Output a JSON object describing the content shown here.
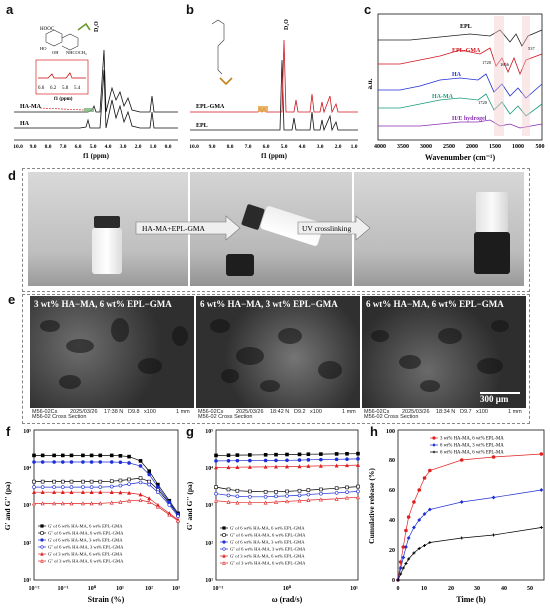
{
  "panels": {
    "a": {
      "label": "a",
      "x_axis_label": "f1 (ppm)",
      "x_ticks": [
        "10.0",
        "9.0",
        "8.0",
        "7.0",
        "6.0",
        "5.0",
        "4.0",
        "3.0",
        "2.0",
        "1.0",
        "0.0"
      ],
      "inset_ticks": [
        "6.6",
        "6.2",
        "5.8",
        "5.4"
      ],
      "inset_axis_label": "f1 (ppm)",
      "series_labels": [
        "HA-MA",
        "HA"
      ],
      "solvent_label": "D₂O",
      "structure_labels": [
        "HOOC",
        "NHCOCH₃",
        "OH",
        "HO"
      ]
    },
    "b": {
      "label": "b",
      "x_axis_label": "f1 (ppm)",
      "x_ticks": [
        "10.0",
        "9.0",
        "8.0",
        "7.0",
        "6.0",
        "5.0",
        "4.0",
        "3.0",
        "2.0",
        "1.0"
      ],
      "series_labels": [
        "EPL-GMA",
        "EPL"
      ],
      "solvent_label": "D₂O"
    },
    "c": {
      "label": "c",
      "x_axis_label": "Wavenumber (cm⁻¹)",
      "y_axis_label": "a.u.",
      "x_ticks": [
        "4000",
        "3500",
        "3000",
        "2500",
        "2000",
        "1500",
        "1000",
        "500"
      ],
      "series_labels": [
        "EPL",
        "EPL-GMA",
        "HA",
        "HA-MA",
        "H/E hydrogel"
      ],
      "peak_labels": [
        "1720",
        "1656",
        "537",
        "1720"
      ]
    },
    "d": {
      "label": "d",
      "step1_label": "HA-MA+EPL-GMA",
      "step2_label": "UV crosslinking"
    },
    "e": {
      "label": "e",
      "images": [
        {
          "caption": "3 wt% HA−MA, 6 wt% EPL−GMA",
          "meta": [
            "M56-02Cs",
            "2025/03/26",
            "17:38 N",
            "D9.8",
            "x100",
            "1 mm"
          ],
          "section": "M56-02 Cross Section"
        },
        {
          "caption": "6 wt% HA−MA, 3 wt% EPL−GMA",
          "meta": [
            "M56-02Cs",
            "2025/03/26",
            "18:42 N",
            "D9.2",
            "x100",
            "1 mm"
          ],
          "section": "M56-02 Cross Section"
        },
        {
          "caption": "6 wt% HA−MA, 6 wt% EPL−GMA",
          "meta": [
            "M56-02Cs",
            "2025/03/26",
            "18:34 N",
            "D9.7",
            "x100",
            "1 mm"
          ],
          "section": "M56-02 Cross Section"
        }
      ],
      "scale_bar": "300 μm"
    },
    "f": {
      "label": "f",
      "x_axis_label": "Strain (%)",
      "y_axis_label": "G' and G'' (pa)",
      "x_ticks": [
        "10⁻²",
        "10⁻¹",
        "10⁰",
        "10¹",
        "10²",
        "10³"
      ],
      "y_ticks": [
        "10¹",
        "10²",
        "10³",
        "10⁴",
        "10⁵"
      ],
      "legend": [
        "G' of 6 wt% HA-MA, 6 wt% EPL-GMA",
        "G'' of 6 wt% HA-MA, 6 wt% EPL-GMA",
        "G' of 6 wt% HA-MA, 3 wt% EPL-GMA",
        "G'' of 6 wt% HA-MA, 3 wt% EPL-GMA",
        "G' of 3 wt% HA-MA, 6 wt% EPL-GMA",
        "G'' of 3 wt% HA-MA, 6 wt% EPL-GMA"
      ]
    },
    "g": {
      "label": "g",
      "x_axis_label": "ω (rad/s)",
      "y_axis_label": "G' and G'' (pa)",
      "x_ticks": [
        "10⁻¹",
        "10⁰",
        "10¹"
      ],
      "y_ticks": [
        "10¹",
        "10²",
        "10³",
        "10⁴",
        "10⁵"
      ],
      "legend": [
        "G' of 6 wt% HA-MA, 6 wt% EPL-GMA",
        "G'' of 6 wt% HA-MA, 6 wt% EPL-GMA",
        "G' of 6 wt% HA-MA, 3 wt% EPL-GMA",
        "G'' of 6 wt% HA-MA, 3 wt% EPL-GMA",
        "G' of 3 wt% HA-MA, 6 wt% EPL-GMA",
        "G'' of 3 wt% HA-MA, 6 wt% EPL-GMA"
      ]
    },
    "h": {
      "label": "h",
      "x_axis_label": "Time (h)",
      "y_axis_label": "Cumulative release (%)",
      "x_ticks": [
        "0",
        "10",
        "20",
        "30",
        "40",
        "50"
      ],
      "y_ticks": [
        "0",
        "20",
        "40",
        "60",
        "80",
        "100"
      ],
      "legend": [
        "3 wt% HA-MA, 6 wt% EPL-MA",
        "6 wt% HA-MA, 3 wt% EPL-MA",
        "6 wt% HA-MA, 6 wt% EPL-MA"
      ]
    }
  },
  "chart_data": [
    {
      "type": "line",
      "panel": "f",
      "xscale": "log",
      "yscale": "log",
      "xlim": [
        0.01,
        1000
      ],
      "ylim": [
        10,
        100000
      ],
      "x": [
        0.01,
        0.02,
        0.05,
        0.1,
        0.2,
        0.5,
        1,
        2,
        5,
        10,
        20,
        50,
        100,
        200,
        500,
        1000
      ],
      "series": [
        {
          "name": "G' of 6 wt% HA-MA, 6 wt% EPL-GMA",
          "color": "#000000",
          "marker": "square",
          "values": [
            21000,
            21000,
            21000,
            21000,
            21000,
            21000,
            21000,
            21000,
            21000,
            20500,
            19500,
            15000,
            8000,
            3500,
            1300,
            600
          ]
        },
        {
          "name": "G'' of 6 wt% HA-MA, 6 wt% EPL-GMA",
          "color": "#000000",
          "marker": "square-open",
          "values": [
            4200,
            4200,
            4200,
            4200,
            4200,
            4200,
            4200,
            4200,
            4300,
            4500,
            4800,
            5200,
            4200,
            2600,
            1100,
            550
          ]
        },
        {
          "name": "G' of 6 wt% HA-MA, 3 wt% EPL-GMA",
          "color": "#1f2fd6",
          "marker": "circle",
          "values": [
            14000,
            14000,
            14000,
            14000,
            14000,
            14000,
            14000,
            14000,
            14000,
            13800,
            13200,
            11000,
            6500,
            3000,
            1200,
            550
          ]
        },
        {
          "name": "G'' of 6 wt% HA-MA, 3 wt% EPL-GMA",
          "color": "#1f2fd6",
          "marker": "circle-open",
          "values": [
            3000,
            3000,
            3000,
            3000,
            3000,
            3000,
            3000,
            3000,
            3100,
            3300,
            3600,
            4000,
            3500,
            2200,
            1000,
            500
          ]
        },
        {
          "name": "G' of 3 wt% HA-MA, 6 wt% EPL-GMA",
          "color": "#e02020",
          "marker": "triangle",
          "values": [
            2200,
            2200,
            2200,
            2200,
            2200,
            2200,
            2200,
            2200,
            2200,
            2150,
            2100,
            1900,
            1500,
            1000,
            600,
            400
          ]
        },
        {
          "name": "G'' of 3 wt% HA-MA, 6 wt% EPL-GMA",
          "color": "#e02020",
          "marker": "triangle-open",
          "values": [
            1100,
            1100,
            1100,
            1100,
            1100,
            1100,
            1100,
            1100,
            1150,
            1200,
            1300,
            1350,
            1200,
            900,
            550,
            380
          ]
        }
      ]
    },
    {
      "type": "line",
      "panel": "g",
      "xscale": "log",
      "yscale": "log",
      "xlim": [
        0.1,
        10
      ],
      "ylim": [
        10,
        100000
      ],
      "x": [
        0.1,
        0.15,
        0.2,
        0.3,
        0.5,
        0.7,
        1,
        1.5,
        2,
        3,
        5,
        7,
        10
      ],
      "series": [
        {
          "name": "G' of 6 wt% HA-MA, 6 wt% EPL-GMA",
          "color": "#000000",
          "marker": "square",
          "values": [
            21000,
            21200,
            21400,
            21600,
            21800,
            22000,
            22200,
            22400,
            22600,
            22800,
            23000,
            23200,
            23400
          ]
        },
        {
          "name": "G'' of 6 wt% HA-MA, 6 wt% EPL-GMA",
          "color": "#000000",
          "marker": "square-open",
          "values": [
            3000,
            2600,
            2400,
            2300,
            2250,
            2250,
            2300,
            2400,
            2500,
            2600,
            2800,
            2950,
            3100
          ]
        },
        {
          "name": "G' of 6 wt% HA-MA, 3 wt% EPL-GMA",
          "color": "#1f2fd6",
          "marker": "circle",
          "values": [
            15000,
            15100,
            15200,
            15300,
            15400,
            15500,
            15600,
            15800,
            16000,
            16200,
            16500,
            16700,
            17000
          ]
        },
        {
          "name": "G'' of 6 wt% HA-MA, 3 wt% EPL-GMA",
          "color": "#1f2fd6",
          "marker": "circle-open",
          "values": [
            2000,
            1800,
            1700,
            1650,
            1650,
            1700,
            1750,
            1800,
            1900,
            2000,
            2100,
            2200,
            2300
          ]
        },
        {
          "name": "G' of 3 wt% HA-MA, 6 wt% EPL-GMA",
          "color": "#e02020",
          "marker": "triangle",
          "values": [
            10000,
            10100,
            10200,
            10300,
            10400,
            10500,
            10600,
            10700,
            10900,
            11000,
            11200,
            11400,
            11600
          ]
        },
        {
          "name": "G'' of 3 wt% HA-MA, 6 wt% EPL-GMA",
          "color": "#e02020",
          "marker": "triangle-open",
          "values": [
            1300,
            1200,
            1150,
            1150,
            1150,
            1200,
            1250,
            1300,
            1350,
            1400,
            1450,
            1550,
            1600
          ]
        }
      ]
    },
    {
      "type": "line",
      "panel": "h",
      "xlim": [
        0,
        55
      ],
      "ylim": [
        0,
        100
      ],
      "x": [
        0,
        1,
        2,
        3,
        4,
        6,
        8,
        10,
        12,
        24,
        36,
        54
      ],
      "series": [
        {
          "name": "3 wt% HA-MA, 6 wt% EPL-MA",
          "color": "#e02020",
          "marker": "circle",
          "values": [
            0,
            12,
            22,
            33,
            42,
            52,
            60,
            68,
            73,
            80,
            82,
            84
          ]
        },
        {
          "name": "6 wt% HA-MA, 3 wt% EPL-MA",
          "color": "#1f2fd6",
          "marker": "diamond",
          "values": [
            0,
            8,
            15,
            22,
            28,
            35,
            40,
            44,
            47,
            52,
            55,
            60
          ]
        },
        {
          "name": "6 wt% HA-MA, 6 wt% EPL-MA",
          "color": "#000000",
          "marker": "plus",
          "values": [
            0,
            4,
            8,
            11,
            14,
            18,
            21,
            23,
            25,
            28,
            30,
            35
          ]
        }
      ]
    }
  ]
}
